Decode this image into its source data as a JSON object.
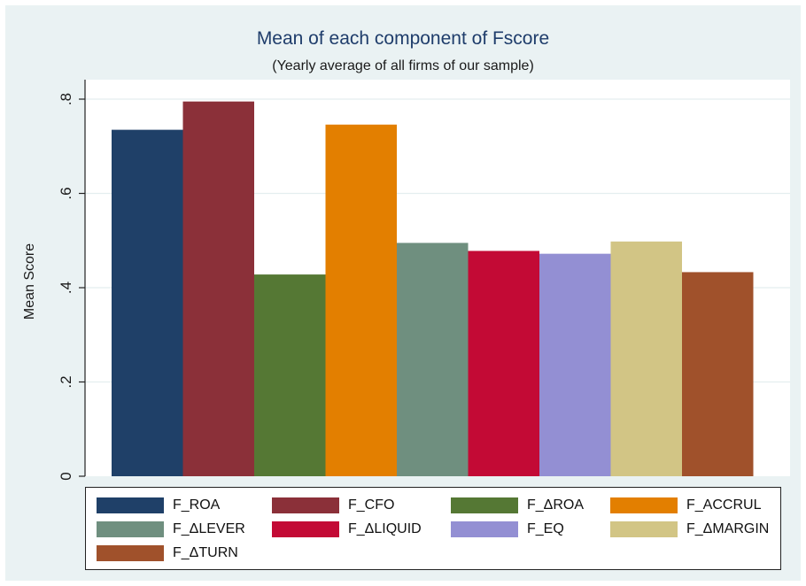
{
  "chart_data": {
    "type": "bar",
    "title": "Mean of each component of Fscore",
    "subtitle": "(Yearly average of all firms of our sample)",
    "xlabel": "",
    "ylabel": "Mean Score",
    "ylim": [
      0,
      0.8
    ],
    "yticks": [
      0,
      0.2,
      0.4,
      0.6,
      0.8
    ],
    "ytick_labels": [
      "0",
      ".2",
      ".4",
      ".6",
      ".8"
    ],
    "grid": true,
    "legend_position": "bottom",
    "series": [
      {
        "name": "F_ROA",
        "value": 0.735,
        "color": "#1f4068"
      },
      {
        "name": "F_CFO",
        "value": 0.795,
        "color": "#8b3039"
      },
      {
        "name": "F_ΔROA",
        "value": 0.428,
        "color": "#557834"
      },
      {
        "name": "F_ACCRUL",
        "value": 0.746,
        "color": "#e37f00"
      },
      {
        "name": "F_ΔLEVER",
        "value": 0.495,
        "color": "#6f8f7f"
      },
      {
        "name": "F_ΔLIQUID",
        "value": 0.478,
        "color": "#c30a35"
      },
      {
        "name": "F_EQ",
        "value": 0.472,
        "color": "#938fd3"
      },
      {
        "name": "F_ΔMARGIN",
        "value": 0.498,
        "color": "#d2c585"
      },
      {
        "name": "F_ΔTURN",
        "value": 0.433,
        "color": "#a0512b"
      }
    ]
  }
}
